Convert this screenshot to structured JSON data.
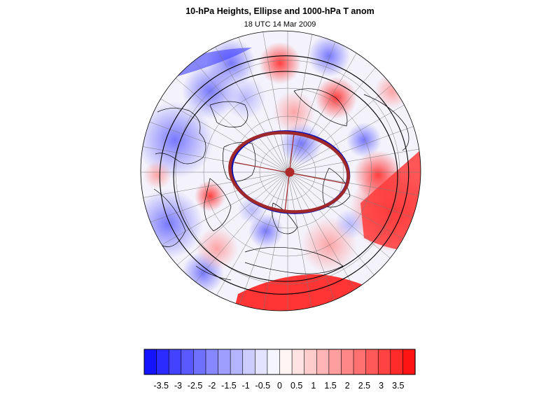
{
  "title": "10-hPa Heights, Ellipse and 1000-hPa T anom",
  "subtitle": "18 UTC 14 Mar 2009",
  "colorbar": {
    "colors": [
      "#1414ff",
      "#2b2bff",
      "#4242ff",
      "#5959ff",
      "#7070ff",
      "#8787ff",
      "#9e9eff",
      "#b5b5ff",
      "#ccccff",
      "#e3e3ff",
      "#f5f5ff",
      "#fff5f5",
      "#ffe3e3",
      "#ffcccc",
      "#ffb5b5",
      "#ff9e9e",
      "#ff8787",
      "#ff7070",
      "#ff5959",
      "#ff4242",
      "#ff2b2b",
      "#ff1414"
    ],
    "tick_labels": [
      "-3.5",
      "-3",
      "-2.5",
      "-2",
      "-1.5",
      "-1",
      "-0.5",
      "0",
      "0.5",
      "1",
      "1.5",
      "2",
      "2.5",
      "3",
      "3.5"
    ],
    "tick_values": [
      -3.5,
      -3,
      -2.5,
      -2,
      -1.5,
      -1,
      -0.5,
      0,
      0.5,
      1,
      1.5,
      2,
      2.5,
      3,
      3.5
    ],
    "range": [
      -4,
      4
    ]
  },
  "map": {
    "projection": "polar stereographic, north pole centered",
    "ellipse_colors": {
      "blue": "#1010b0",
      "red": "#a02828"
    },
    "center_marker_color": "#b02828"
  }
}
